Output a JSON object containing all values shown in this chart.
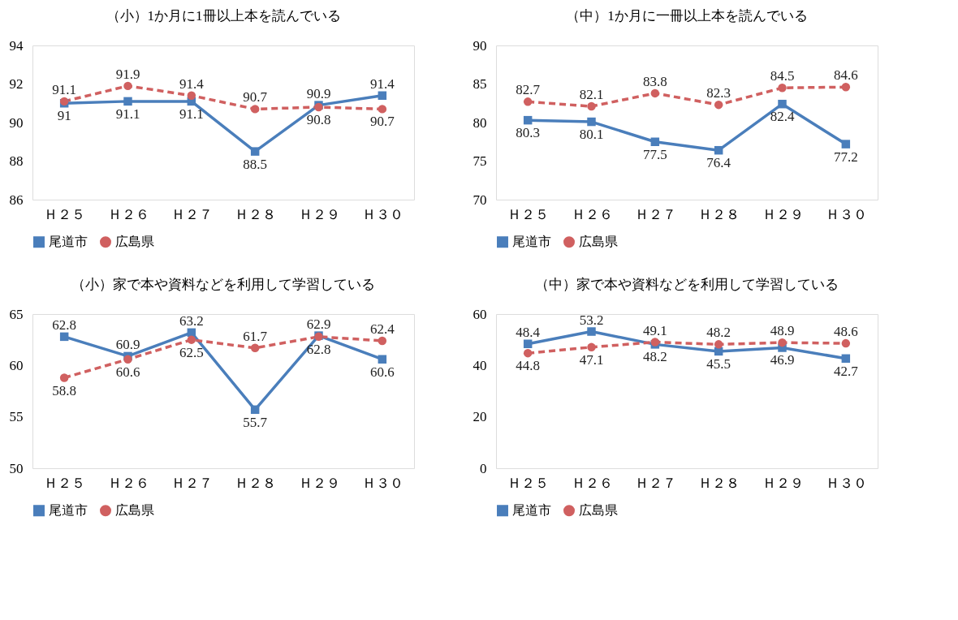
{
  "chart_data": [
    {
      "type": "line",
      "title": "（小）1か月に1冊以上本を読んでいる",
      "categories": [
        "Ｈ２５",
        "Ｈ２６",
        "Ｈ２７",
        "Ｈ２８",
        "Ｈ２９",
        "Ｈ３０"
      ],
      "ylim": [
        86,
        94
      ],
      "yticks": [
        86,
        88,
        90,
        92,
        94
      ],
      "grid": false,
      "legend": "bottom",
      "data_labels": true,
      "series": [
        {
          "name": "尾道市",
          "color": "#4a7ebb",
          "marker": "square",
          "line_style": "solid",
          "values": [
            91,
            91.1,
            91.1,
            88.5,
            90.9,
            91.4
          ]
        },
        {
          "name": "広島県",
          "color": "#d06060",
          "marker": "circle",
          "line_style": "dashed",
          "values": [
            91.1,
            91.9,
            91.4,
            90.7,
            90.8,
            90.7
          ]
        }
      ]
    },
    {
      "type": "line",
      "title": "（中）1か月に一冊以上本を読んでいる",
      "categories": [
        "Ｈ２５",
        "Ｈ２６",
        "Ｈ２７",
        "Ｈ２８",
        "Ｈ２９",
        "Ｈ３０"
      ],
      "ylim": [
        70,
        90
      ],
      "yticks": [
        70,
        75,
        80,
        85,
        90
      ],
      "grid": false,
      "legend": "bottom",
      "data_labels": true,
      "series": [
        {
          "name": "尾道市",
          "color": "#4a7ebb",
          "marker": "square",
          "line_style": "solid",
          "values": [
            80.3,
            80.1,
            77.5,
            76.4,
            82.4,
            77.2
          ]
        },
        {
          "name": "広島県",
          "color": "#d06060",
          "marker": "circle",
          "line_style": "dashed",
          "values": [
            82.7,
            82.1,
            83.8,
            82.3,
            84.5,
            84.6
          ]
        }
      ]
    },
    {
      "type": "line",
      "title": "（小）家で本や資料などを利用して学習している",
      "categories": [
        "Ｈ２５",
        "Ｈ２６",
        "Ｈ２７",
        "Ｈ２８",
        "Ｈ２９",
        "Ｈ３０"
      ],
      "ylim": [
        50,
        65
      ],
      "yticks": [
        50,
        55,
        60,
        65
      ],
      "grid": false,
      "legend": "bottom",
      "data_labels": true,
      "series": [
        {
          "name": "尾道市",
          "color": "#4a7ebb",
          "marker": "square",
          "line_style": "solid",
          "values": [
            62.8,
            60.9,
            63.2,
            55.7,
            62.9,
            60.6
          ]
        },
        {
          "name": "広島県",
          "color": "#d06060",
          "marker": "circle",
          "line_style": "dashed",
          "values": [
            58.8,
            60.6,
            62.5,
            61.7,
            62.8,
            62.4
          ]
        }
      ]
    },
    {
      "type": "line",
      "title": "（中）家で本や資料などを利用して学習している",
      "categories": [
        "Ｈ２５",
        "Ｈ２６",
        "Ｈ２７",
        "Ｈ２８",
        "Ｈ２９",
        "Ｈ３０"
      ],
      "ylim": [
        0,
        60
      ],
      "yticks": [
        0,
        20,
        40,
        60
      ],
      "grid": false,
      "legend": "bottom",
      "data_labels": true,
      "series": [
        {
          "name": "尾道市",
          "color": "#4a7ebb",
          "marker": "square",
          "line_style": "solid",
          "values": [
            48.4,
            53.2,
            48.2,
            45.5,
            46.9,
            42.7
          ]
        },
        {
          "name": "広島県",
          "color": "#d06060",
          "marker": "circle",
          "line_style": "dashed",
          "values": [
            44.8,
            47.1,
            49.1,
            48.2,
            48.9,
            48.6
          ]
        }
      ]
    }
  ]
}
